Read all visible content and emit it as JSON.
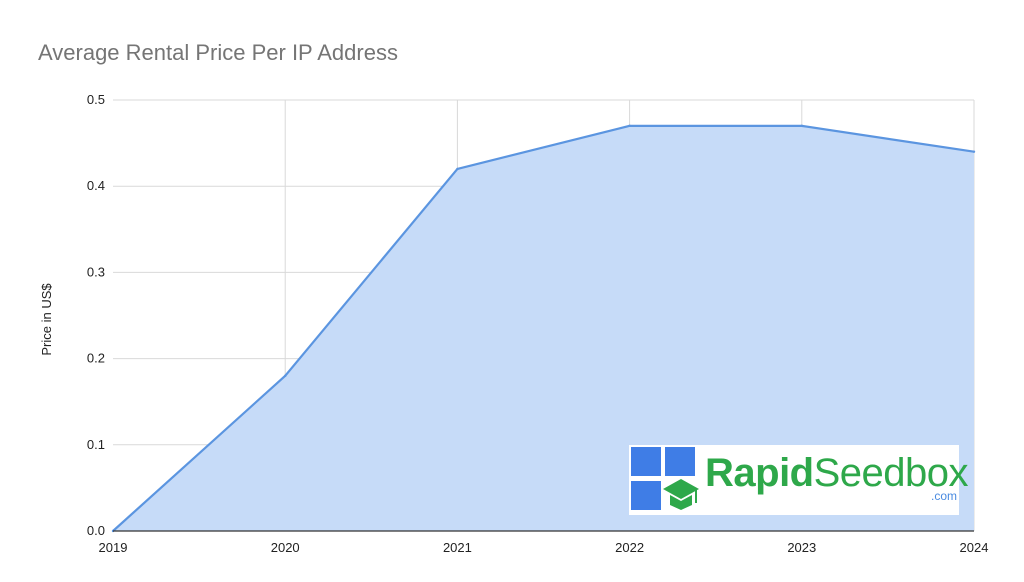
{
  "chart_data": {
    "type": "area",
    "title": "Average Rental Price Per IP Address",
    "xlabel": "",
    "ylabel": "Price in US$",
    "categories": [
      "2019",
      "2020",
      "2021",
      "2022",
      "2023",
      "2024"
    ],
    "values": [
      0.0,
      0.18,
      0.42,
      0.47,
      0.47,
      0.44
    ],
    "ylim": [
      0,
      0.5
    ],
    "yticks": [
      "0.0",
      "0.1",
      "0.2",
      "0.3",
      "0.4",
      "0.5"
    ],
    "grid": true,
    "legend": "none",
    "colors": {
      "line": "#5b95e0",
      "fill": "#c6dbf8",
      "grid": "#d9d9d9",
      "axis": "#333333"
    }
  },
  "watermark": {
    "brand_bold": "Rapid",
    "brand_regular": "Seedbox",
    "tld": ".com",
    "square_color": "#3f7de6",
    "cap_color": "#2ea84a",
    "icon": "graduation-cap-icon"
  }
}
